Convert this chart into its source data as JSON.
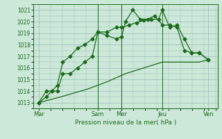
{
  "bg_color": "#cce8d8",
  "grid_color": "#99bbbb",
  "line_color": "#1a6b1a",
  "xlabel": "Pression niveau de la mer( hPa )",
  "ylim": [
    1012.5,
    1021.5
  ],
  "yticks": [
    1013,
    1014,
    1015,
    1016,
    1017,
    1018,
    1019,
    1020,
    1021
  ],
  "xlim": [
    0,
    10
  ],
  "day_labels": [
    "Mar",
    "Sam",
    "Mer",
    "Jeu",
    "Ven"
  ],
  "day_positions": [
    0.3,
    3.5,
    4.8,
    7.0,
    9.5
  ],
  "vline_positions": [
    3.5,
    4.8,
    7.0
  ],
  "series1_x": [
    0.3,
    0.7,
    1.0,
    1.3,
    1.6,
    2.0,
    2.4,
    2.8,
    3.2,
    3.5,
    4.0,
    4.5,
    4.8,
    5.2,
    5.6,
    6.0,
    6.4,
    6.8,
    7.0,
    7.4,
    7.8,
    8.2,
    8.6,
    9.0,
    9.5
  ],
  "series1_y": [
    1013.0,
    1014.0,
    1014.0,
    1014.5,
    1016.5,
    1017.0,
    1017.7,
    1018.0,
    1018.5,
    1019.1,
    1019.1,
    1019.5,
    1019.5,
    1019.7,
    1019.9,
    1020.1,
    1020.2,
    1020.2,
    1021.0,
    1019.5,
    1019.7,
    1018.5,
    1017.3,
    1017.3,
    1016.7
  ],
  "series2_x": [
    0.3,
    0.7,
    1.0,
    1.3,
    1.6,
    2.0,
    2.4,
    2.8,
    3.2,
    3.5,
    4.0,
    4.5,
    4.8,
    5.0,
    5.4,
    5.8,
    6.2,
    6.6,
    7.0,
    7.4,
    7.8,
    8.2,
    8.6,
    9.0,
    9.5
  ],
  "series2_y": [
    1013.0,
    1013.5,
    1014.0,
    1014.0,
    1015.5,
    1015.5,
    1016.0,
    1016.5,
    1017.0,
    1019.1,
    1018.8,
    1018.5,
    1018.7,
    1020.0,
    1021.0,
    1020.2,
    1020.2,
    1020.5,
    1019.7,
    1019.7,
    1019.5,
    1017.5,
    1017.3,
    1017.3,
    1016.7
  ],
  "series3_x": [
    0.3,
    1.5,
    3.0,
    4.0,
    5.0,
    6.0,
    7.0,
    8.0,
    9.0,
    9.5
  ],
  "series3_y": [
    1013.0,
    1013.5,
    1014.2,
    1014.8,
    1015.5,
    1016.0,
    1016.5,
    1016.5,
    1016.5,
    1016.7
  ]
}
